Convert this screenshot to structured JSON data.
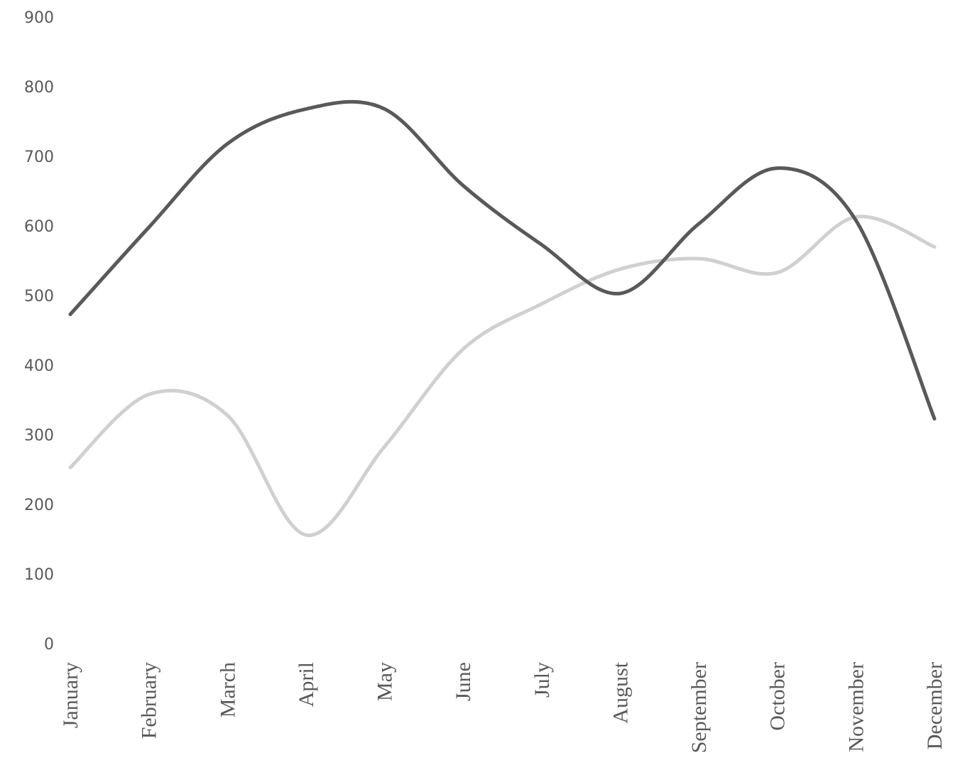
{
  "chart_data": {
    "type": "line",
    "smooth": true,
    "categories": [
      "January",
      "February",
      "March",
      "April",
      "May",
      "June",
      "July",
      "August",
      "September",
      "October",
      "November",
      "December"
    ],
    "series": [
      {
        "color": "#595959",
        "values": [
          475,
          600,
          720,
          770,
          770,
          660,
          575,
          505,
          605,
          685,
          610,
          325
        ]
      },
      {
        "color": "#d0d0d0",
        "values": [
          255,
          360,
          330,
          158,
          285,
          425,
          490,
          540,
          555,
          535,
          615,
          572
        ]
      }
    ],
    "title": "",
    "xlabel": "",
    "ylabel": "",
    "ylim": [
      0,
      900
    ],
    "yticks": [
      0,
      100,
      200,
      300,
      400,
      500,
      600,
      700,
      800,
      900
    ],
    "grid": false,
    "legend": "none"
  }
}
